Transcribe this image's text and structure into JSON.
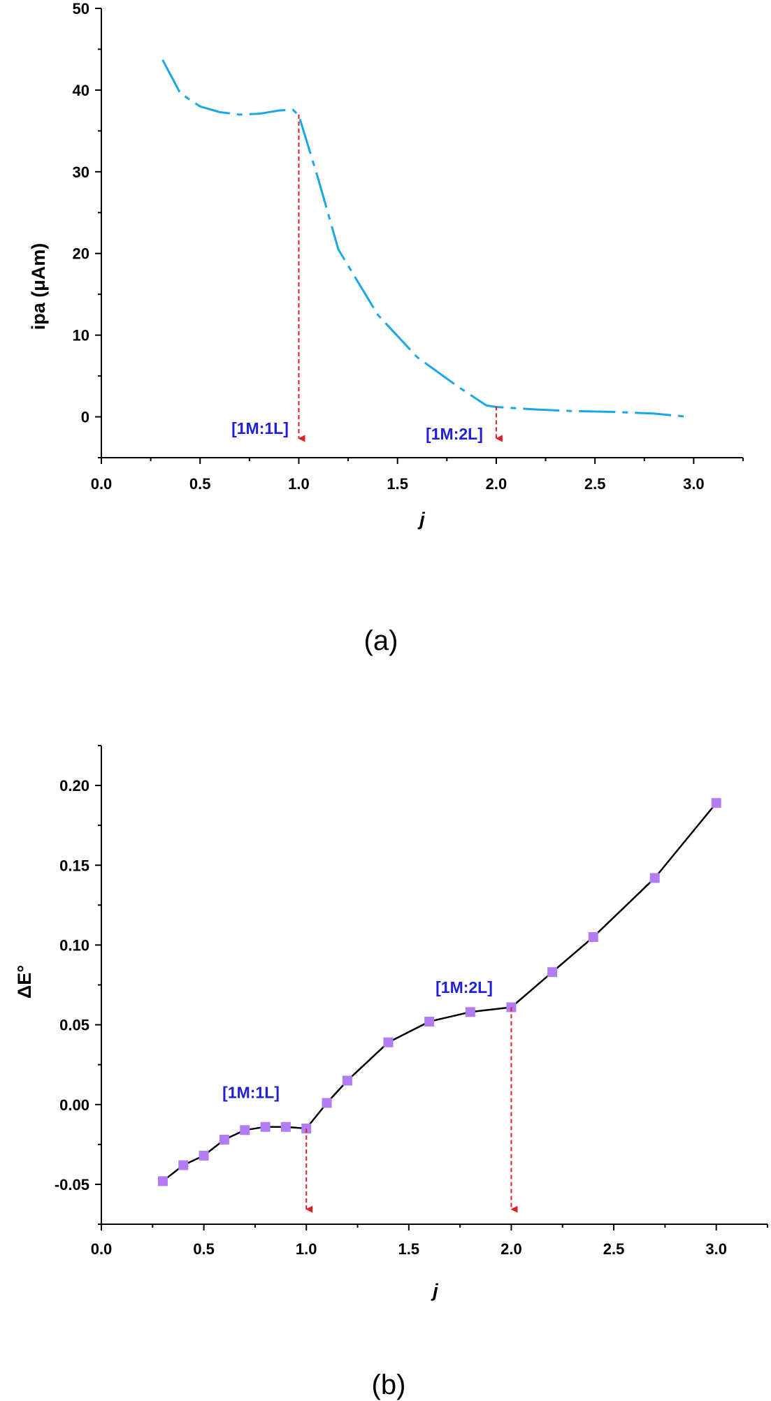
{
  "colors": {
    "axis": "#000000",
    "line_a": "#1aa7e6",
    "line_b": "#000000",
    "marker_b": "#b27cf2",
    "arrow": "#e02020",
    "annotation": "#2020d8"
  },
  "chart_data": [
    {
      "type": "line",
      "panel_label": "(a)",
      "xlabel": "j",
      "ylabel": "ipa (μAm)",
      "xlim": [
        0,
        3.25
      ],
      "ylim": [
        -5,
        50
      ],
      "xticks": [
        0.0,
        0.5,
        1.0,
        1.5,
        2.0,
        2.5,
        3.0
      ],
      "xtick_labels": [
        "0.0",
        "0.5",
        "1.0",
        "1.5",
        "2.0",
        "2.5",
        "3.0"
      ],
      "yticks": [
        0,
        10,
        20,
        30,
        40,
        50
      ],
      "ytick_labels": [
        "0",
        "10",
        "20",
        "30",
        "40",
        "50"
      ],
      "line_style": "dashed",
      "series": [
        {
          "x": [
            0.31,
            0.4,
            0.5,
            0.6,
            0.7,
            0.8,
            0.9,
            0.97,
            1.0,
            1.1,
            1.2,
            1.4,
            1.6,
            1.8,
            1.95,
            2.0,
            2.2,
            2.4,
            2.6,
            2.8,
            2.97
          ],
          "y": [
            43.7,
            39.6,
            38.0,
            37.3,
            37.0,
            37.1,
            37.5,
            37.6,
            36.9,
            29.0,
            20.5,
            12.5,
            7.3,
            3.8,
            1.4,
            1.2,
            0.9,
            0.7,
            0.6,
            0.4,
            0.0
          ]
        }
      ],
      "annotations": [
        {
          "text": "[1M:1L]",
          "x": 1.0
        },
        {
          "text": "[1M:2L]",
          "x": 2.0
        }
      ],
      "arrows": [
        {
          "x": 1.0,
          "from_y": 37.0,
          "to_y": -3.5
        },
        {
          "x": 2.0,
          "from_y": 1.3,
          "to_y": -3.5
        }
      ]
    },
    {
      "type": "line",
      "panel_label": "(b)",
      "xlabel": "j",
      "ylabel": "ΔE°",
      "xlim": [
        0,
        3.25
      ],
      "ylim": [
        -0.075,
        0.225
      ],
      "xticks": [
        0.0,
        0.5,
        1.0,
        1.5,
        2.0,
        2.5,
        3.0
      ],
      "xtick_labels": [
        "0.0",
        "0.5",
        "1.0",
        "1.5",
        "2.0",
        "2.5",
        "3.0"
      ],
      "yticks": [
        -0.05,
        0.0,
        0.05,
        0.1,
        0.15,
        0.2
      ],
      "ytick_labels": [
        "-0.05",
        "0.00",
        "0.05",
        "0.10",
        "0.15",
        "0.20"
      ],
      "markers": "square",
      "series": [
        {
          "x": [
            0.3,
            0.4,
            0.5,
            0.6,
            0.7,
            0.8,
            0.9,
            1.0,
            1.1,
            1.2,
            1.4,
            1.6,
            1.8,
            2.0,
            2.2,
            2.4,
            2.7,
            3.0
          ],
          "y": [
            -0.048,
            -0.038,
            -0.032,
            -0.022,
            -0.016,
            -0.014,
            -0.014,
            -0.015,
            0.001,
            0.015,
            0.039,
            0.052,
            0.058,
            0.061,
            0.083,
            0.105,
            0.142,
            0.189
          ]
        }
      ],
      "annotations": [
        {
          "text": "[1M:1L]",
          "x": 0.73,
          "y": 0.004
        },
        {
          "text": "[1M:2L]",
          "x": 1.77,
          "y": 0.07
        }
      ],
      "arrows": [
        {
          "x": 1.0,
          "from_y": -0.015,
          "to_y": -0.07
        },
        {
          "x": 2.0,
          "from_y": 0.061,
          "to_y": -0.07
        }
      ]
    }
  ]
}
